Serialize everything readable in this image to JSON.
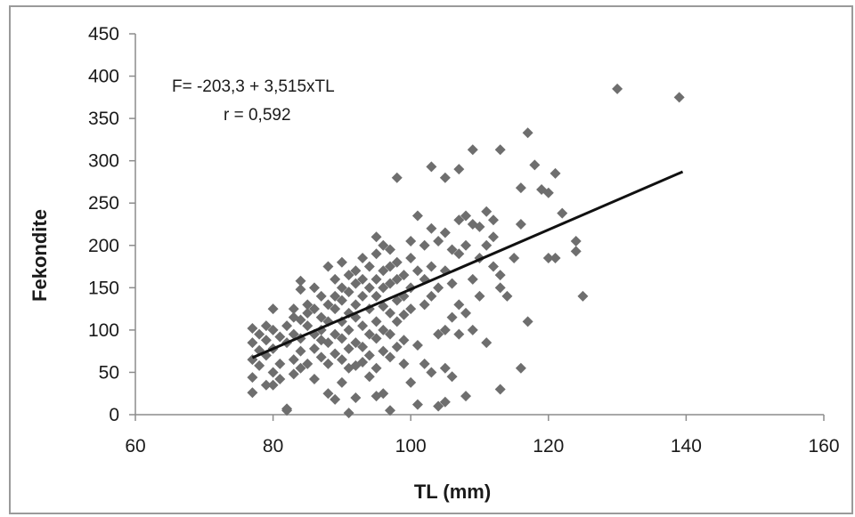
{
  "chart_data": {
    "type": "scatter",
    "title": "",
    "xlabel": "TL (mm)",
    "ylabel": "Fekondite",
    "xlim": [
      60,
      160
    ],
    "ylim": [
      0,
      450
    ],
    "xticks": [
      "60",
      "80",
      "100",
      "120",
      "140",
      "160"
    ],
    "yticks": [
      "0",
      "50",
      "100",
      "150",
      "200",
      "250",
      "300",
      "350",
      "400",
      "450"
    ],
    "grid": false,
    "legend": "none",
    "marker": "diamond",
    "colors": {
      "points": "#6e6e6e",
      "line": "#111111",
      "axis": "#8c8c8c",
      "frame": "#9a9a9a"
    },
    "annotations": [
      "F= -203,3 + 3,515xTL",
      "r = 0,592"
    ],
    "trendline": {
      "intercept": -203.3,
      "slope": 3.515,
      "x_range": [
        77,
        139.5
      ]
    },
    "series": [
      {
        "points": [
          [
            77,
            102
          ],
          [
            77,
            85
          ],
          [
            77,
            65
          ],
          [
            77,
            44
          ],
          [
            77,
            26
          ],
          [
            78,
            95
          ],
          [
            78,
            76
          ],
          [
            78,
            58
          ],
          [
            79,
            105
          ],
          [
            79,
            88
          ],
          [
            79,
            70
          ],
          [
            79,
            35
          ],
          [
            80,
            125
          ],
          [
            80,
            100
          ],
          [
            80,
            78
          ],
          [
            80,
            50
          ],
          [
            80,
            35
          ],
          [
            81,
            92
          ],
          [
            81,
            60
          ],
          [
            81,
            42
          ],
          [
            82,
            105
          ],
          [
            82,
            85
          ],
          [
            82,
            7
          ],
          [
            82,
            5
          ],
          [
            83,
            125
          ],
          [
            83,
            115
          ],
          [
            83,
            95
          ],
          [
            83,
            65
          ],
          [
            83,
            48
          ],
          [
            84,
            158
          ],
          [
            84,
            148
          ],
          [
            84,
            112
          ],
          [
            84,
            90
          ],
          [
            84,
            75
          ],
          [
            84,
            55
          ],
          [
            85,
            130
          ],
          [
            85,
            120
          ],
          [
            85,
            105
          ],
          [
            85,
            60
          ],
          [
            86,
            150
          ],
          [
            86,
            125
          ],
          [
            86,
            95
          ],
          [
            86,
            78
          ],
          [
            86,
            42
          ],
          [
            87,
            140
          ],
          [
            87,
            115
          ],
          [
            87,
            100
          ],
          [
            87,
            88
          ],
          [
            87,
            68
          ],
          [
            88,
            175
          ],
          [
            88,
            130
          ],
          [
            88,
            110
          ],
          [
            88,
            85
          ],
          [
            88,
            60
          ],
          [
            88,
            25
          ],
          [
            89,
            160
          ],
          [
            89,
            140
          ],
          [
            89,
            125
          ],
          [
            89,
            95
          ],
          [
            89,
            72
          ],
          [
            89,
            18
          ],
          [
            90,
            180
          ],
          [
            90,
            150
          ],
          [
            90,
            135
          ],
          [
            90,
            110
          ],
          [
            90,
            90
          ],
          [
            90,
            65
          ],
          [
            90,
            38
          ],
          [
            91,
            165
          ],
          [
            91,
            145
          ],
          [
            91,
            120
          ],
          [
            91,
            100
          ],
          [
            91,
            78
          ],
          [
            91,
            55
          ],
          [
            91,
            2
          ],
          [
            92,
            170
          ],
          [
            92,
            155
          ],
          [
            92,
            130
          ],
          [
            92,
            115
          ],
          [
            92,
            85
          ],
          [
            92,
            58
          ],
          [
            92,
            20
          ],
          [
            93,
            185
          ],
          [
            93,
            160
          ],
          [
            93,
            140
          ],
          [
            93,
            105
          ],
          [
            93,
            80
          ],
          [
            93,
            62
          ],
          [
            94,
            175
          ],
          [
            94,
            150
          ],
          [
            94,
            125
          ],
          [
            94,
            95
          ],
          [
            94,
            70
          ],
          [
            94,
            45
          ],
          [
            95,
            210
          ],
          [
            95,
            190
          ],
          [
            95,
            160
          ],
          [
            95,
            140
          ],
          [
            95,
            110
          ],
          [
            95,
            90
          ],
          [
            95,
            55
          ],
          [
            95,
            22
          ],
          [
            96,
            200
          ],
          [
            96,
            170
          ],
          [
            96,
            150
          ],
          [
            96,
            128
          ],
          [
            96,
            100
          ],
          [
            96,
            75
          ],
          [
            96,
            25
          ],
          [
            97,
            195
          ],
          [
            97,
            175
          ],
          [
            97,
            155
          ],
          [
            97,
            120
          ],
          [
            97,
            95
          ],
          [
            97,
            68
          ],
          [
            97,
            5
          ],
          [
            98,
            280
          ],
          [
            98,
            180
          ],
          [
            98,
            160
          ],
          [
            98,
            135
          ],
          [
            98,
            110
          ],
          [
            98,
            80
          ],
          [
            99,
            165
          ],
          [
            99,
            140
          ],
          [
            99,
            118
          ],
          [
            99,
            88
          ],
          [
            99,
            60
          ],
          [
            100,
            205
          ],
          [
            100,
            185
          ],
          [
            100,
            150
          ],
          [
            100,
            125
          ],
          [
            100,
            38
          ],
          [
            101,
            235
          ],
          [
            101,
            170
          ],
          [
            101,
            82
          ],
          [
            101,
            12
          ],
          [
            102,
            200
          ],
          [
            102,
            160
          ],
          [
            102,
            130
          ],
          [
            102,
            60
          ],
          [
            103,
            293
          ],
          [
            103,
            220
          ],
          [
            103,
            175
          ],
          [
            103,
            140
          ],
          [
            103,
            50
          ],
          [
            104,
            205
          ],
          [
            104,
            150
          ],
          [
            104,
            95
          ],
          [
            104,
            10
          ],
          [
            105,
            280
          ],
          [
            105,
            215
          ],
          [
            105,
            170
          ],
          [
            105,
            100
          ],
          [
            105,
            55
          ],
          [
            105,
            15
          ],
          [
            106,
            195
          ],
          [
            106,
            155
          ],
          [
            106,
            115
          ],
          [
            106,
            45
          ],
          [
            107,
            290
          ],
          [
            107,
            230
          ],
          [
            107,
            190
          ],
          [
            107,
            130
          ],
          [
            107,
            95
          ],
          [
            108,
            235
          ],
          [
            108,
            200
          ],
          [
            108,
            120
          ],
          [
            108,
            22
          ],
          [
            109,
            313
          ],
          [
            109,
            225
          ],
          [
            109,
            160
          ],
          [
            109,
            100
          ],
          [
            110,
            222
          ],
          [
            110,
            185
          ],
          [
            110,
            140
          ],
          [
            111,
            240
          ],
          [
            111,
            200
          ],
          [
            111,
            85
          ],
          [
            112,
            230
          ],
          [
            112,
            210
          ],
          [
            112,
            175
          ],
          [
            113,
            313
          ],
          [
            113,
            165
          ],
          [
            113,
            150
          ],
          [
            113,
            30
          ],
          [
            114,
            140
          ],
          [
            115,
            185
          ],
          [
            116,
            268
          ],
          [
            116,
            225
          ],
          [
            116,
            55
          ],
          [
            117,
            333
          ],
          [
            117,
            110
          ],
          [
            118,
            295
          ],
          [
            119,
            266
          ],
          [
            120,
            262
          ],
          [
            120,
            185
          ],
          [
            121,
            285
          ],
          [
            121,
            185
          ],
          [
            122,
            238
          ],
          [
            124,
            205
          ],
          [
            124,
            193
          ],
          [
            125,
            140
          ],
          [
            130,
            385
          ],
          [
            139,
            375
          ]
        ]
      }
    ]
  }
}
